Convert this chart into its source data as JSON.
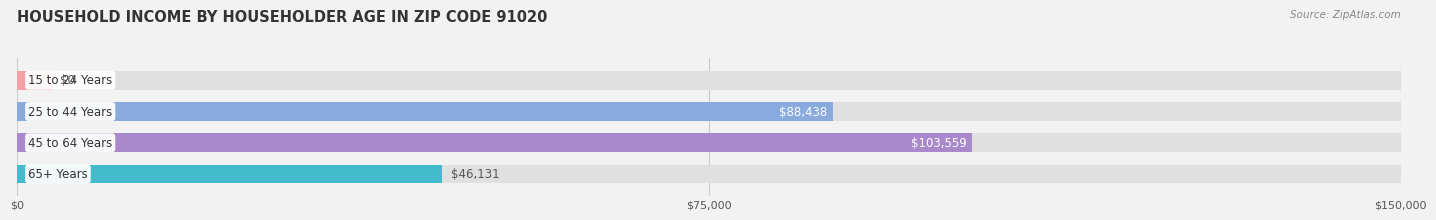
{
  "title": "HOUSEHOLD INCOME BY HOUSEHOLDER AGE IN ZIP CODE 91020",
  "source": "Source: ZipAtlas.com",
  "categories": [
    "15 to 24 Years",
    "25 to 44 Years",
    "45 to 64 Years",
    "65+ Years"
  ],
  "values": [
    0,
    88438,
    103559,
    46131
  ],
  "labels": [
    "$0",
    "$88,438",
    "$103,559",
    "$46,131"
  ],
  "bar_colors": [
    "#f4a0a8",
    "#88aadd",
    "#aa88cc",
    "#44bbcc"
  ],
  "label_colors": [
    "#555555",
    "#ffffff",
    "#ffffff",
    "#555555"
  ],
  "xmax": 150000,
  "xticks": [
    0,
    75000,
    150000
  ],
  "xticklabels": [
    "$0",
    "$75,000",
    "$150,000"
  ],
  "background_color": "#f2f2f2",
  "bar_bg_color": "#e0e0e0",
  "title_fontsize": 10.5,
  "source_fontsize": 7.5,
  "bar_height": 0.6,
  "label_fontsize": 8.5,
  "category_fontsize": 8.5
}
